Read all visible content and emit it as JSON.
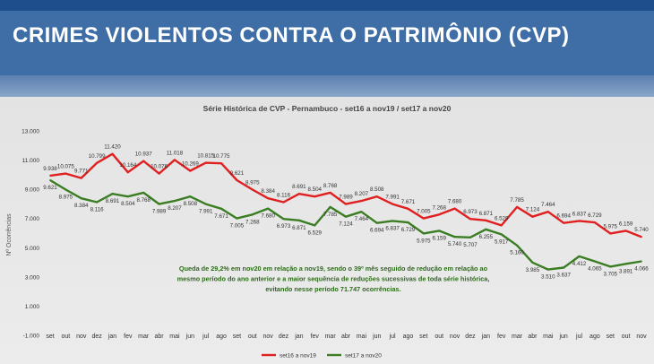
{
  "banner": {
    "title": "CRIMES VIOLENTOS CONTRA O PATRIMÔNIO (CVP)"
  },
  "chart_data": {
    "type": "line",
    "title": "Série Histórica de CVP - Pernambuco - set16 a nov19 /  set17 a nov20",
    "ylabel": "Nº Ocorrências",
    "xlabel": "",
    "ylim": [
      -1000,
      13000
    ],
    "y_ticks": [
      "-1.000",
      "1.000",
      "3.000",
      "5.000",
      "7.000",
      "9.000",
      "11.000",
      "13.000"
    ],
    "y_tick_values": [
      -1000,
      1000,
      3000,
      5000,
      7000,
      9000,
      11000,
      13000
    ],
    "categories": [
      "set",
      "out",
      "nov",
      "dez",
      "jan",
      "fev",
      "mar",
      "abr",
      "mai",
      "jun",
      "jul",
      "ago",
      "set",
      "out",
      "nov",
      "dez",
      "jan",
      "fev",
      "mar",
      "abr",
      "mai",
      "jun",
      "jul",
      "ago",
      "set",
      "out",
      "nov",
      "dez",
      "jan",
      "fev",
      "mar",
      "abr",
      "mai",
      "jun",
      "jul",
      "ago",
      "set",
      "out",
      "nov"
    ],
    "series": [
      {
        "name": "set16 a nov19",
        "color": "#e02020",
        "values": [
          9938,
          10075,
          9771,
          10799,
          11420,
          10164,
          10937,
          10076,
          11018,
          10269,
          10815,
          10775,
          9621,
          8975,
          8384,
          8116,
          8691,
          8504,
          8768,
          7989,
          8207,
          8508,
          7991,
          7671,
          7005,
          7268,
          7680,
          6973,
          6871,
          6529,
          7785,
          7124,
          7464,
          6694,
          6837,
          6729,
          5975,
          6159,
          5740
        ],
        "labels": [
          "9.938",
          "10.075",
          "9.771",
          "10.799",
          "11.420",
          "10.164",
          "10.937",
          "10.076",
          "11.018",
          "10.269",
          "10.815",
          "10.775",
          "9.621",
          "8.975",
          "8.384",
          "8.116",
          "8.691",
          "8.504",
          "8.768",
          "7.989",
          "8.207",
          "8.508",
          "7.991",
          "7.671",
          "7.005",
          "7.268",
          "7.680",
          "6.973",
          "6.871",
          "6.529",
          "7.785",
          "7.124",
          "7.464",
          "6.694",
          "6.837",
          "6.729",
          "5.975",
          "6.159",
          "5.740"
        ]
      },
      {
        "name": "set17 a nov20",
        "color": "#3a7d22",
        "values": [
          9621,
          8975,
          8384,
          8116,
          8691,
          8504,
          8768,
          7989,
          8207,
          8508,
          7991,
          7671,
          7005,
          7268,
          7680,
          6973,
          6871,
          6529,
          7785,
          7124,
          7464,
          6694,
          6837,
          6729,
          5975,
          6159,
          5740,
          5707,
          6255,
          5917,
          5160,
          3985,
          3510,
          3637,
          4412,
          4065,
          3705,
          3891,
          4066
        ],
        "labels": [
          "9.621",
          "8.975",
          "8.384",
          "8.116",
          "8.691",
          "8.504",
          "8.768",
          "7.989",
          "8.207",
          "8.508",
          "7.991",
          "7.671",
          "7.005",
          "7.268",
          "7.680",
          "6.973",
          "6.871",
          "6.529",
          "7.785",
          "7.124",
          "7.464",
          "6.694",
          "6.837",
          "6.729",
          "5.975",
          "6.159",
          "5.740",
          "5.707",
          "6.255",
          "5.917",
          "5.160",
          "3.985",
          "3.510",
          "3.637",
          "4.412",
          "4.065",
          "3.705",
          "3.891",
          "4.066"
        ]
      }
    ],
    "annotation": [
      "Queda de 29,2% em nov20 em relação a nov19, sendo o 39º mês seguido de redução em relação ao",
      "mesmo período do ano anterior e a maior sequência de reduções sucessivas de toda série histórica,",
      "evitando nesse período 71.747 ocorrências."
    ],
    "annotation_color": "#2e6b1a",
    "legend_position": "bottom",
    "grid": false
  }
}
